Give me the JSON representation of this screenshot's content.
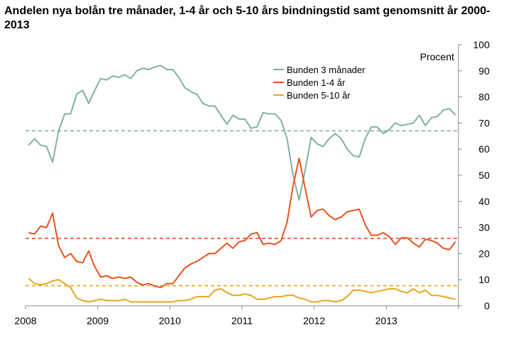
{
  "title": "Andelen nya bolån tre månader, 1-4 år och 5-10 års bindningstid samt genomsnitt år 2000-2013",
  "chart_data": {
    "type": "line",
    "title": "Andelen nya bolån tre månader, 1-4 år och 5-10 års bindningstid samt genomsnitt år 2000-2013",
    "ylabel": "Procent",
    "ylim": [
      0,
      100
    ],
    "yticks": [
      "0",
      "10",
      "20",
      "30",
      "40",
      "50",
      "60",
      "70",
      "80",
      "90",
      "100"
    ],
    "xlim": [
      2008,
      2014
    ],
    "xticks": [
      "2008",
      "2009",
      "2010",
      "2011",
      "2012",
      "2013"
    ],
    "legend_position": "top-center",
    "grid": false,
    "series": [
      {
        "name": "Bunden 3 månader",
        "color": "#7fb39a",
        "average": 67,
        "values": [
          61.5,
          64,
          61.5,
          61,
          55,
          67,
          73.5,
          73.5,
          81,
          82.5,
          77.5,
          82.5,
          87,
          86.5,
          88,
          87.5,
          88.5,
          87,
          90,
          91,
          90.5,
          91.5,
          92,
          90.5,
          90.5,
          87.5,
          83.5,
          82,
          81,
          77.5,
          76.5,
          76.5,
          73,
          69.5,
          73,
          71.5,
          71.5,
          68,
          68.5,
          74,
          73.5,
          73.5,
          71,
          64,
          50,
          40.5,
          52,
          64.5,
          62,
          61,
          64,
          66,
          64,
          60,
          57.5,
          57,
          64,
          68.5,
          68.5,
          66,
          67.5,
          70,
          69,
          69.5,
          70,
          73,
          69,
          72,
          72.5,
          75,
          75.5,
          73
        ]
      },
      {
        "name": "Bunden 1-4 år",
        "color": "#e8521e",
        "average": 25.8,
        "values": [
          28,
          27.5,
          30.5,
          30,
          35.5,
          23,
          18.5,
          20,
          17,
          16.5,
          21,
          15,
          11,
          11.5,
          10.5,
          11,
          10.5,
          11,
          9,
          8,
          8.5,
          7.5,
          7,
          8.5,
          8.5,
          11.5,
          14.5,
          16,
          17,
          18.5,
          20,
          20,
          22,
          24,
          22,
          24.5,
          25,
          27.5,
          28,
          23.5,
          24,
          23.5,
          25,
          32,
          46,
          56.5,
          45,
          34,
          36.5,
          37,
          34.5,
          33,
          34,
          36,
          36.5,
          37,
          31,
          27,
          27,
          28,
          26.5,
          23.5,
          26,
          26,
          24,
          22.5,
          25.5,
          25,
          24,
          22,
          21.5,
          24.5
        ]
      },
      {
        "name": "Bunden 5-10 år",
        "color": "#e8a61e",
        "average": 7.7,
        "values": [
          10.5,
          8.5,
          8,
          8.5,
          9.5,
          10,
          8.5,
          7,
          3,
          2,
          1.5,
          2,
          2.5,
          2,
          2,
          2,
          2.5,
          1.5,
          1.5,
          1.5,
          1.5,
          1.5,
          1.5,
          1.5,
          1.5,
          2,
          2,
          2.5,
          3.5,
          3.5,
          3.5,
          6,
          6.5,
          5,
          4,
          4,
          4.5,
          4,
          2.5,
          2.5,
          3,
          3.5,
          3.5,
          4,
          4,
          3,
          2.5,
          1.5,
          1.5,
          2,
          2,
          1.5,
          2,
          3.5,
          6,
          6,
          5.5,
          5,
          5.5,
          6,
          6.5,
          6.5,
          5.5,
          5,
          6.5,
          5,
          6,
          4,
          4,
          3.5,
          3,
          2.5
        ]
      }
    ]
  }
}
